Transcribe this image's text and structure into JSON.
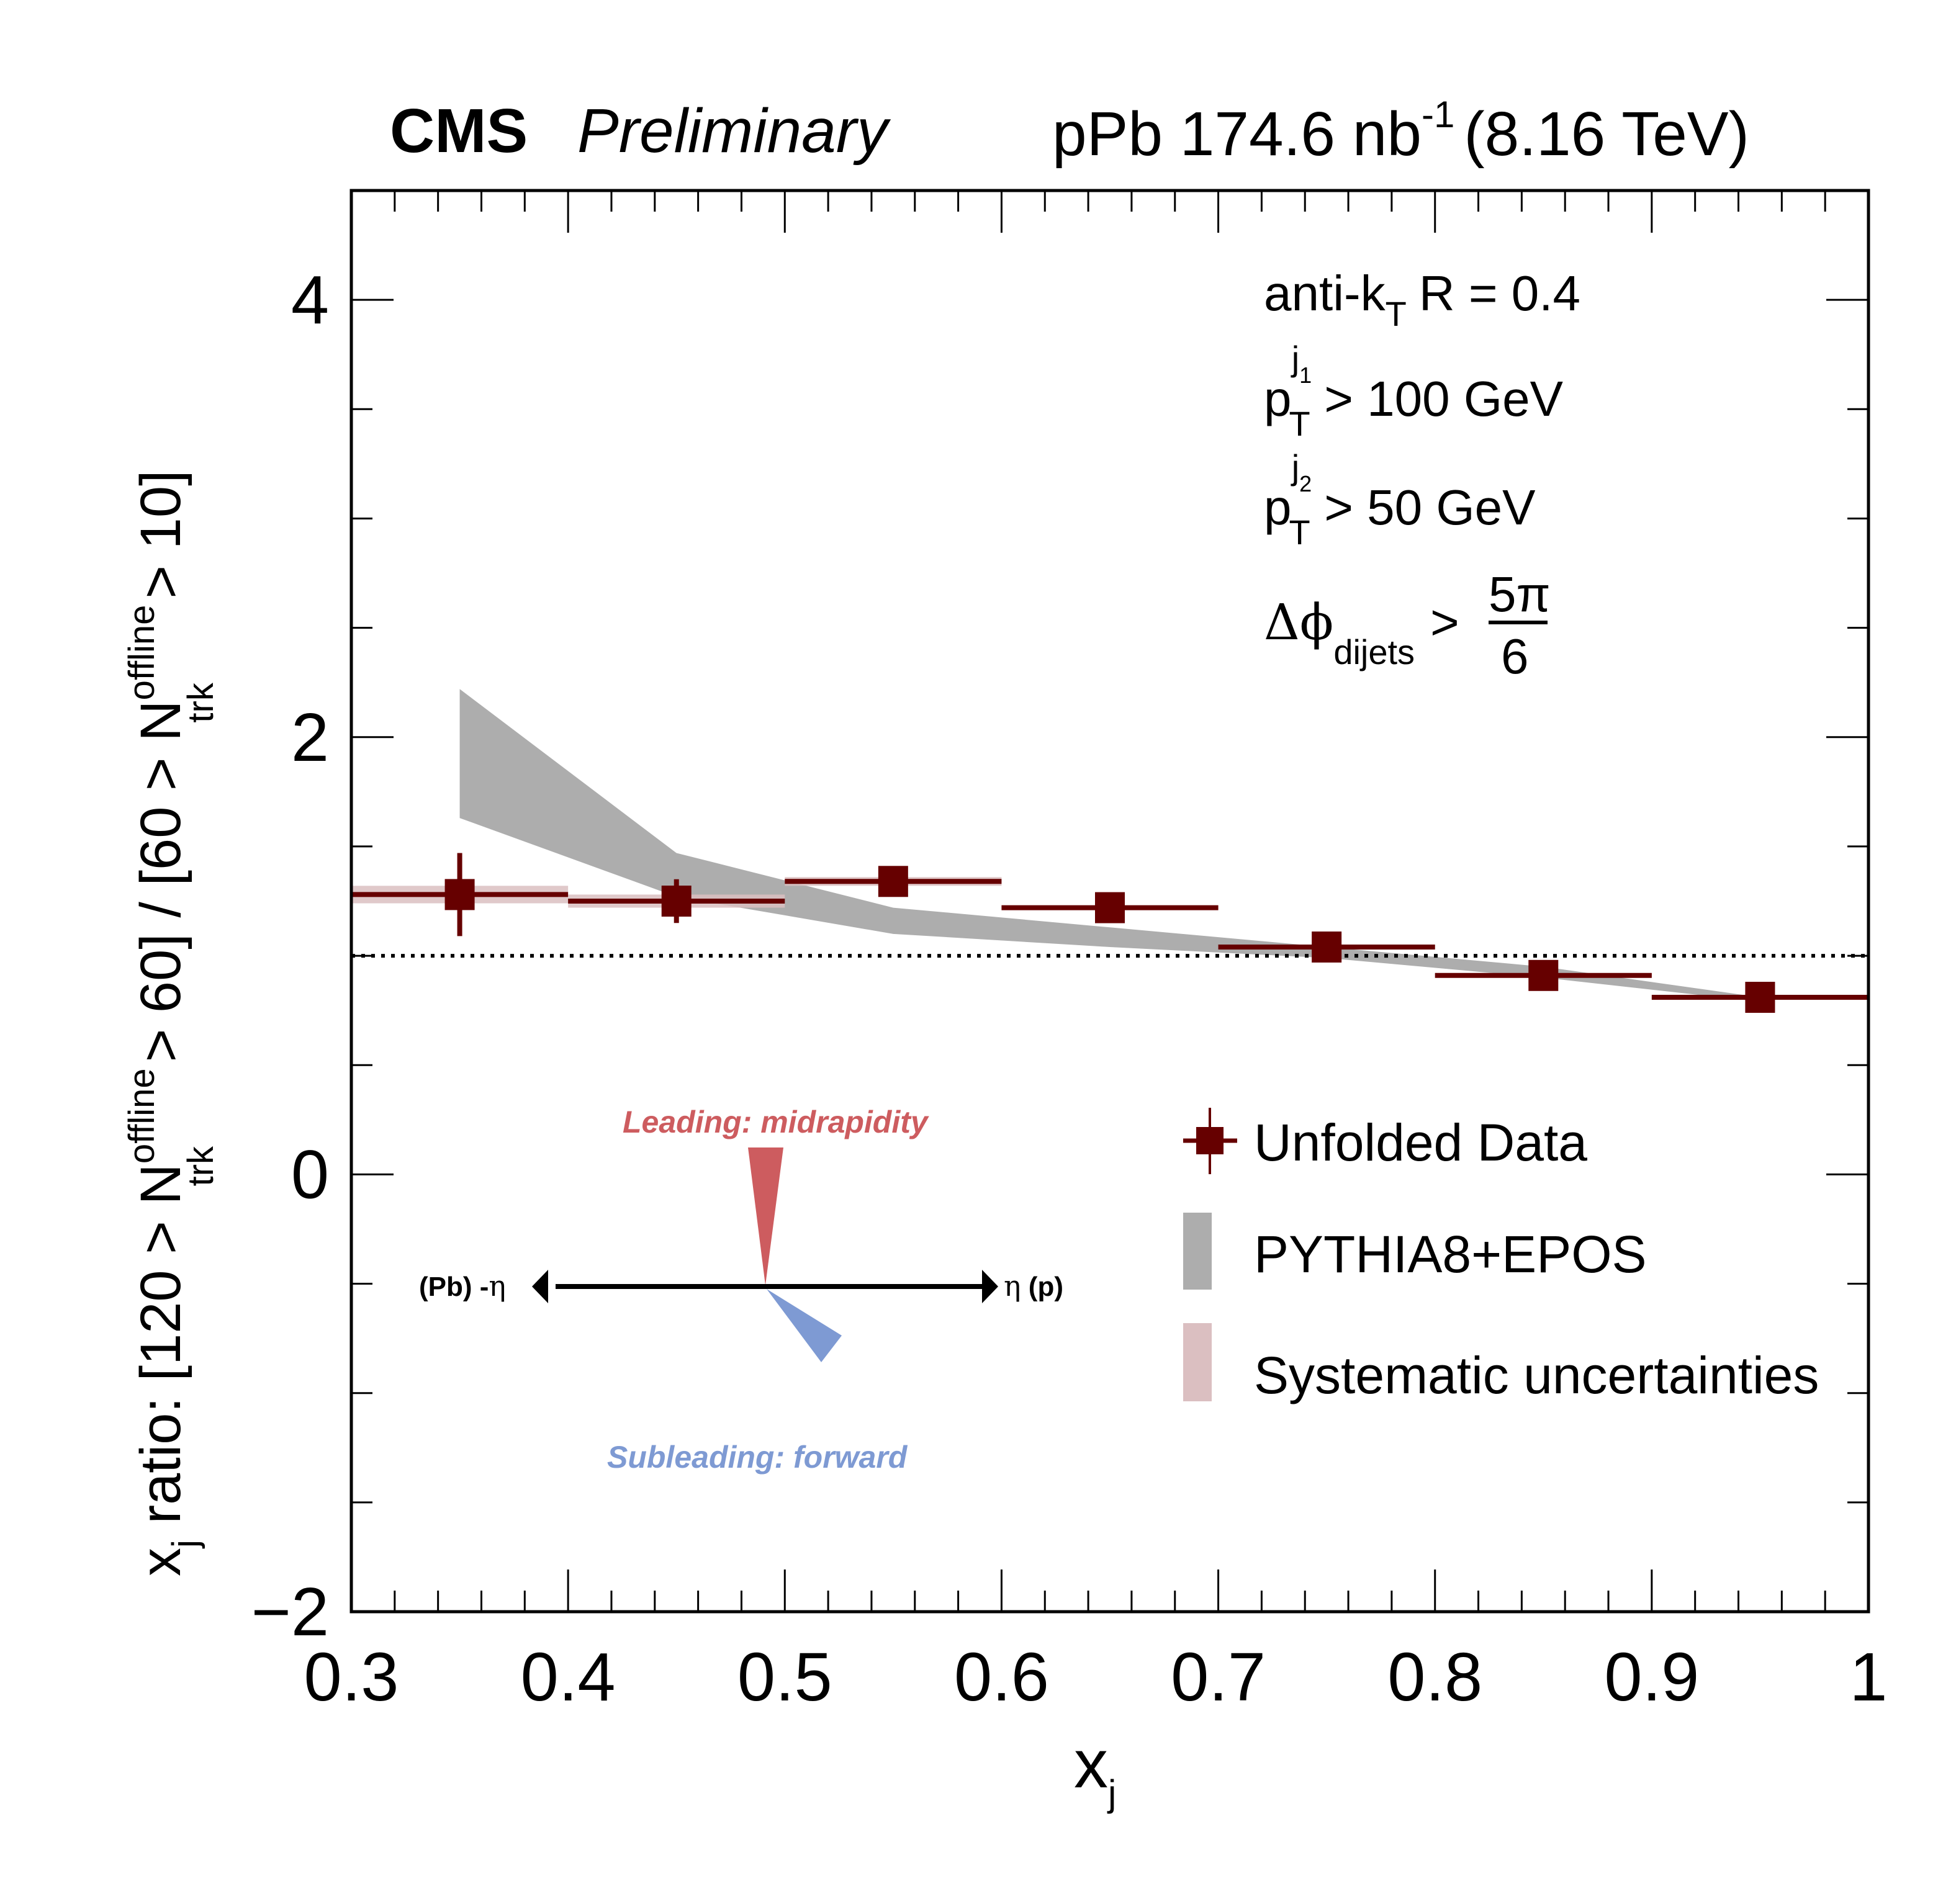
{
  "header": {
    "experiment": "CMS",
    "status": "Preliminary",
    "lumi_prefix": "pPb 174.6 nb",
    "lumi_exp": "-1",
    "energy": "(8.16 TeV)"
  },
  "info": {
    "jet_algo": "anti-k",
    "jet_algo_sub": "T",
    "jet_radius": "R = 0.4",
    "pt1_base": "p",
    "pt1_sub": "T",
    "pt1_sup": "j",
    "pt1_sup_sub": "1",
    "pt1_cut": "> 100 GeV",
    "pt2_base": "p",
    "pt2_sub": "T",
    "pt2_sup": "j",
    "pt2_sup_sub": "2",
    "pt2_cut": "> 50 GeV",
    "dphi_base": "Δϕ",
    "dphi_sub": "dijets",
    "dphi_op": ">",
    "dphi_num": "5π",
    "dphi_den": "6"
  },
  "legend": {
    "items": [
      {
        "label": "Unfolded Data",
        "color": "#660000",
        "kind": "marker"
      },
      {
        "label": "PYTHIA8+EPOS",
        "color": "#adadad",
        "kind": "box"
      },
      {
        "label": "Systematic uncertainties",
        "color": "#dbbfc1",
        "kind": "box"
      }
    ]
  },
  "inset": {
    "leading_label": "Leading: midrapidity",
    "subleading_label": "Subleading: forward",
    "left_label_paren": "(Pb) -",
    "left_label_eta": "η",
    "right_label_eta": "η",
    "right_label_paren": " (p)",
    "leading_color": "#cd5c5f",
    "subleading_color": "#7e9ad3"
  },
  "chart_data": {
    "type": "scatter",
    "title": "CMS Preliminary — pPb 174.6 nb^-1 (8.16 TeV)",
    "xlabel": "x_j",
    "ylabel": "x_j ratio: [120 > N_trk^offline > 60] / [60 > N_trk^offline > 10]",
    "xlim": [
      0.3,
      1.0
    ],
    "ylim": [
      -2,
      4.5
    ],
    "x_ticks": [
      0.3,
      0.4,
      0.5,
      0.6,
      0.7,
      0.8,
      0.9,
      1.0
    ],
    "x_tick_labels": [
      "0.3",
      "0.4",
      "0.5",
      "0.6",
      "0.7",
      "0.8",
      "0.9",
      "1"
    ],
    "y_ticks": [
      -2,
      0,
      2,
      4
    ],
    "y_tick_labels": [
      "−2",
      "0",
      "2",
      "4"
    ],
    "reference_line": 1.0,
    "grid": false,
    "legend_position": "bottom-right",
    "series": [
      {
        "name": "Unfolded Data",
        "color": "#660000",
        "bins": [
          [
            0.3,
            0.4
          ],
          [
            0.4,
            0.5
          ],
          [
            0.5,
            0.6
          ],
          [
            0.6,
            0.7
          ],
          [
            0.7,
            0.8
          ],
          [
            0.8,
            0.9
          ],
          [
            0.9,
            1.0
          ]
        ],
        "x": [
          0.35,
          0.45,
          0.55,
          0.65,
          0.75,
          0.85,
          0.95
        ],
        "y": [
          1.28,
          1.25,
          1.34,
          1.22,
          1.04,
          0.91,
          0.81
        ],
        "stat_err": [
          0.19,
          0.1,
          0.02,
          0.02,
          0.02,
          0.02,
          0.02
        ],
        "sys_err": [
          0.04,
          0.03,
          0.02,
          0.01,
          0.01,
          0.01,
          0.01
        ]
      },
      {
        "name": "PYTHIA8+EPOS",
        "color": "#adadad",
        "type": "band",
        "x": [
          0.35,
          0.45,
          0.55,
          0.65,
          0.75,
          0.85,
          0.95
        ],
        "upper": [
          2.22,
          1.47,
          1.22,
          1.13,
          1.04,
          0.95,
          0.81
        ],
        "lower": [
          1.63,
          1.27,
          1.1,
          1.04,
          0.99,
          0.9,
          0.79
        ]
      }
    ]
  }
}
